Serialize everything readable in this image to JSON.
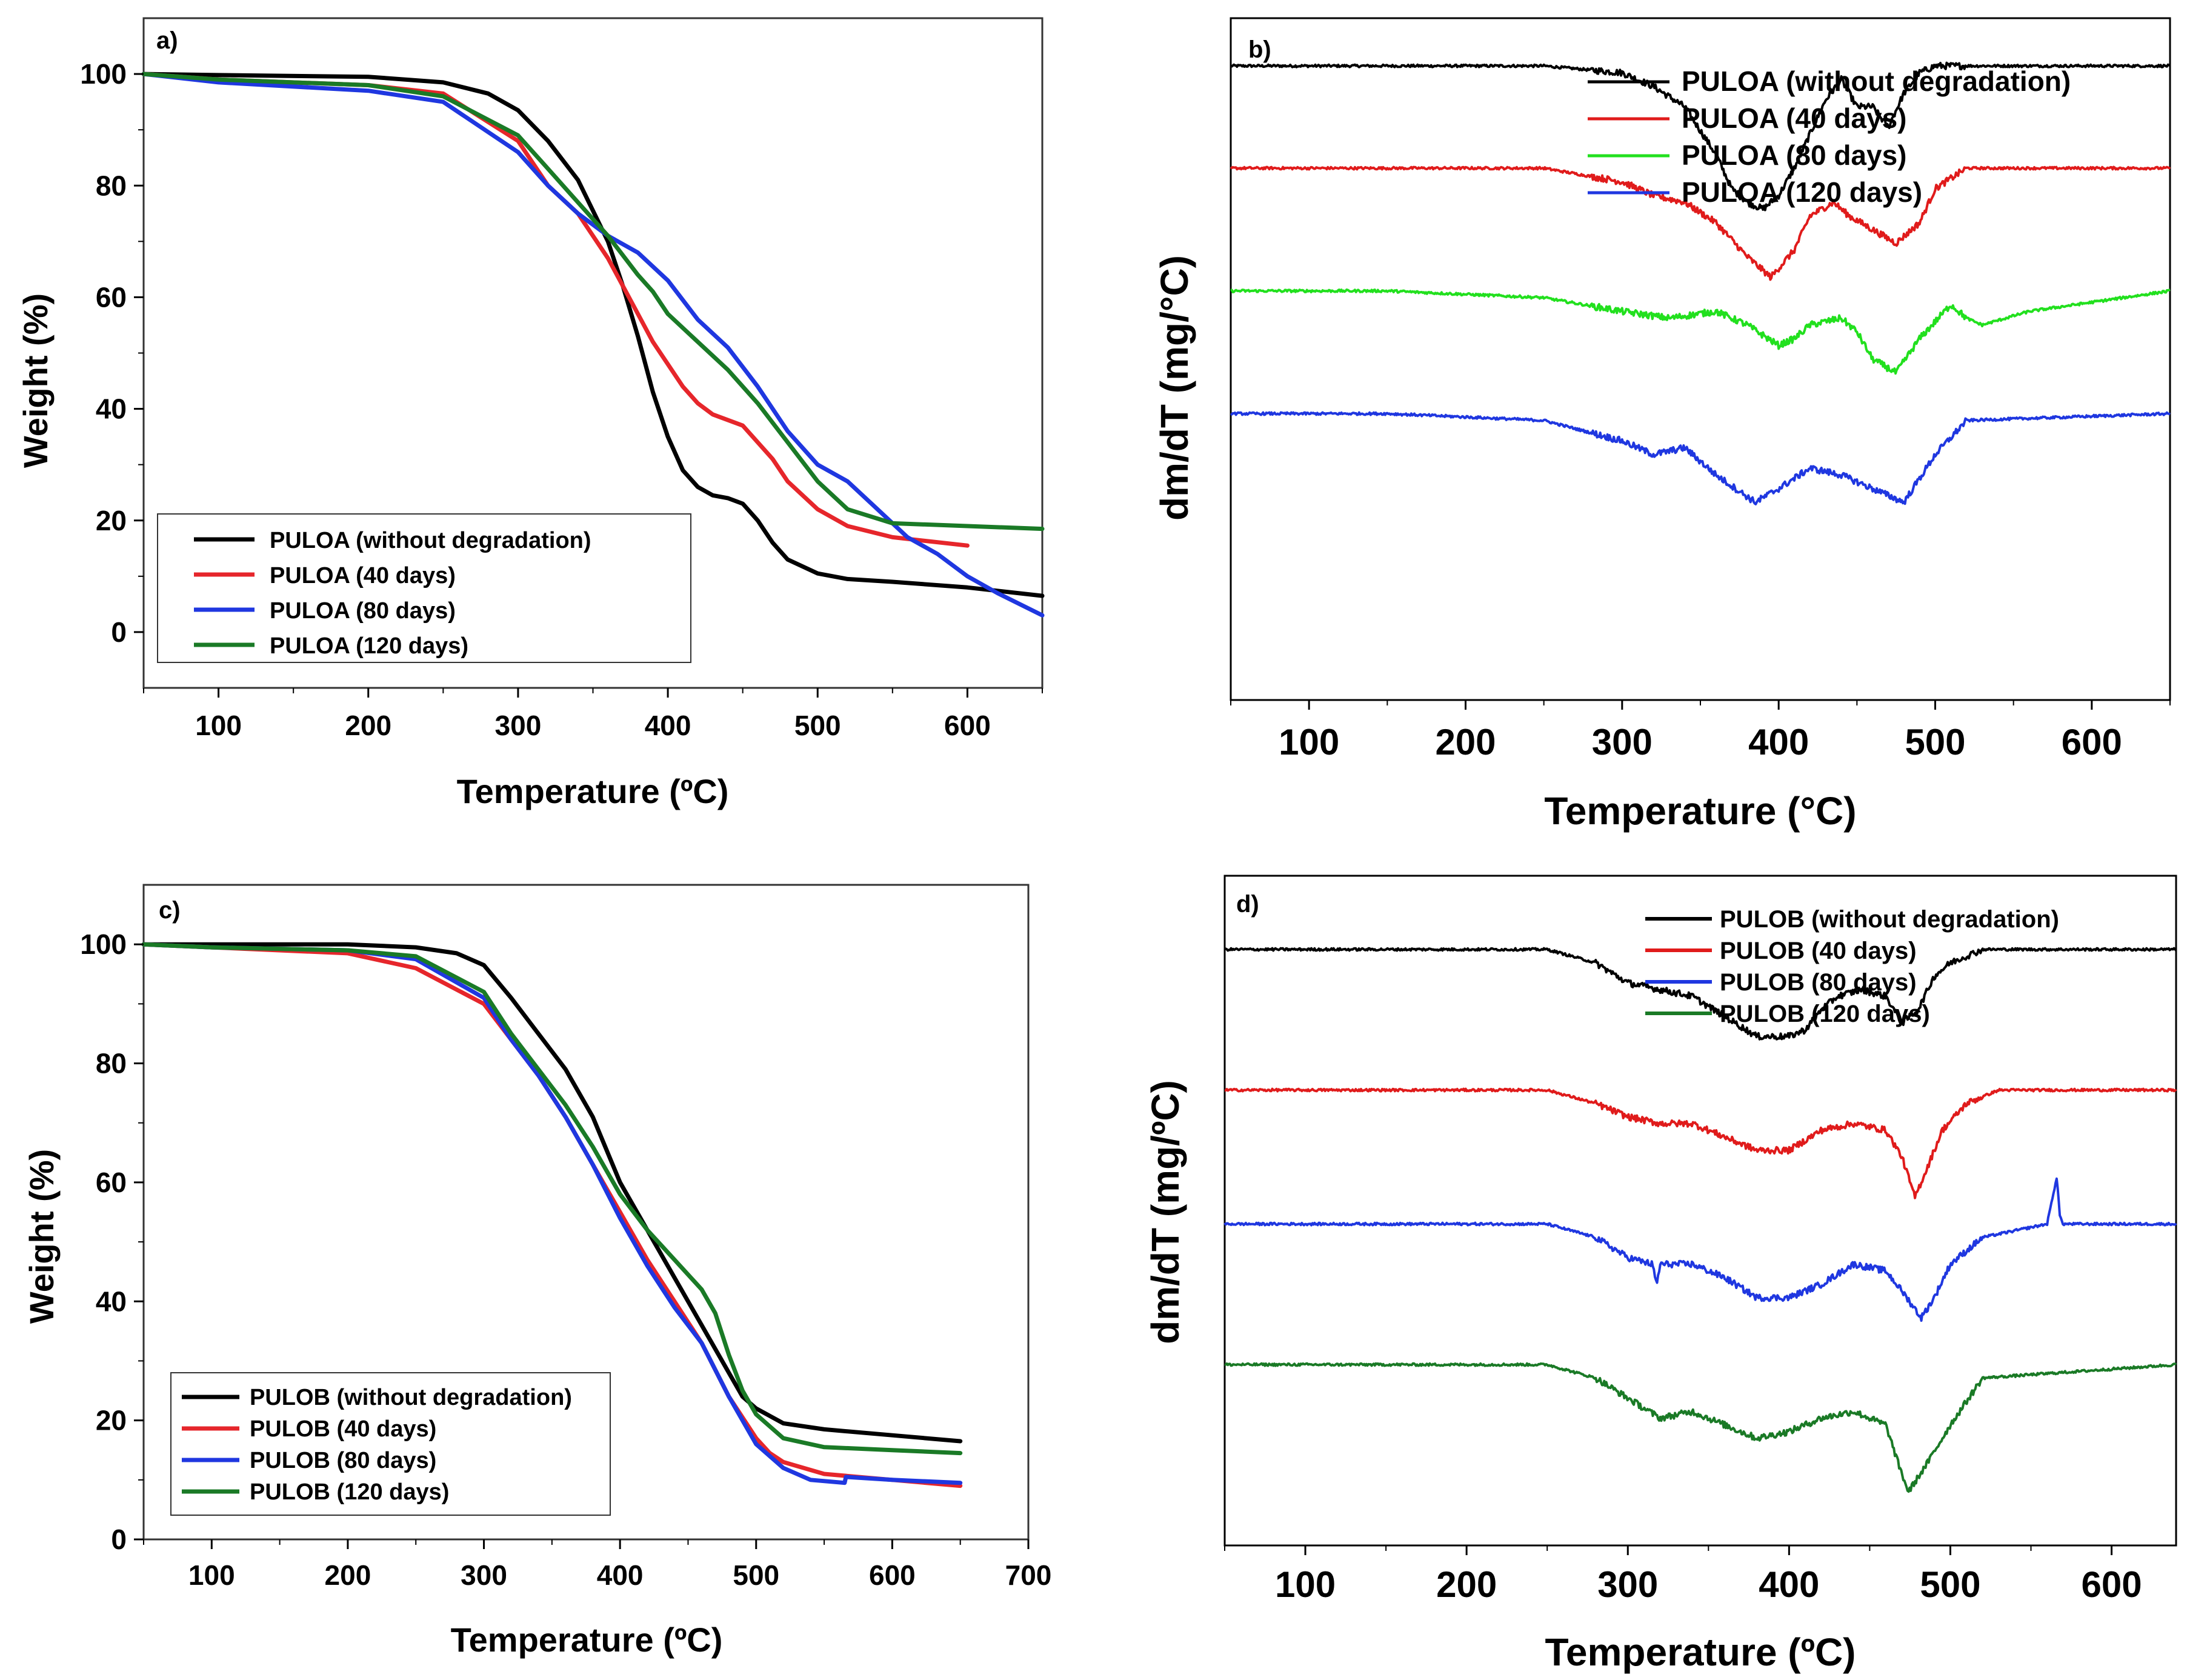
{
  "chart_data": [
    {
      "panel": "a)",
      "type": "line",
      "xlabel": "Temperature (ºC)",
      "ylabel": "Weight (%)",
      "xlim": [
        50,
        650
      ],
      "ylim": [
        -10,
        110
      ],
      "xticks": [
        100,
        200,
        300,
        400,
        500,
        600
      ],
      "yticks": [
        0,
        20,
        40,
        60,
        80,
        100
      ],
      "legend_position": "bottom-left",
      "series": [
        {
          "name": "PULOA (without degradation)",
          "color": "#000000",
          "x": [
            50,
            100,
            200,
            250,
            280,
            300,
            320,
            340,
            360,
            370,
            380,
            390,
            400,
            410,
            420,
            430,
            440,
            450,
            460,
            470,
            480,
            500,
            520,
            550,
            600,
            650
          ],
          "y": [
            100,
            99.8,
            99.5,
            98.5,
            96.5,
            93.5,
            88,
            81,
            70,
            62,
            53,
            43,
            35,
            29,
            26,
            24.5,
            24,
            23,
            20,
            16,
            13,
            10.5,
            9.5,
            9,
            8,
            6.5
          ]
        },
        {
          "name": "PULOA (40 days)",
          "color": "#e6262b",
          "x": [
            50,
            100,
            200,
            250,
            300,
            320,
            340,
            360,
            380,
            390,
            400,
            410,
            420,
            430,
            450,
            460,
            470,
            480,
            500,
            520,
            550,
            600
          ],
          "y": [
            100,
            99,
            98,
            96.5,
            88,
            80,
            75,
            67,
            57,
            52,
            48,
            44,
            41,
            39,
            37,
            34,
            31,
            27,
            22,
            19,
            17,
            15.5
          ]
        },
        {
          "name": "PULOA (80 days)",
          "color": "#1f37e0",
          "x": [
            50,
            100,
            200,
            250,
            300,
            320,
            340,
            360,
            380,
            400,
            420,
            440,
            460,
            480,
            500,
            520,
            540,
            560,
            580,
            600,
            620,
            650
          ],
          "y": [
            100,
            98.5,
            97,
            95,
            86,
            80,
            75,
            71,
            68,
            63,
            56,
            51,
            44,
            36,
            30,
            27,
            22,
            17,
            14,
            10,
            7,
            3
          ]
        },
        {
          "name": "PULOA (120 days)",
          "color": "#1a7a26",
          "x": [
            50,
            100,
            200,
            250,
            300,
            320,
            340,
            360,
            380,
            390,
            400,
            420,
            440,
            460,
            480,
            500,
            520,
            550,
            600,
            650
          ],
          "y": [
            100,
            99,
            98,
            96,
            89,
            83,
            77,
            71,
            64,
            61,
            57,
            52,
            47,
            41,
            34,
            27,
            22,
            19.5,
            19,
            18.5
          ]
        }
      ]
    },
    {
      "panel": "b)",
      "type": "line",
      "xlabel": "Temperature (°C)",
      "ylabel": "dm/dT (mg/°C)",
      "xlim": [
        50,
        650
      ],
      "ylim": [
        0,
        10
      ],
      "xticks": [
        100,
        200,
        300,
        400,
        500,
        600
      ],
      "yticks": [],
      "legend_position": "top-right",
      "series": [
        {
          "name": "PULOA (without degradation)",
          "color": "#000000",
          "noise": 0.06,
          "x": [
            50,
            250,
            300,
            320,
            340,
            360,
            370,
            380,
            390,
            400,
            410,
            420,
            430,
            440,
            450,
            460,
            470,
            480,
            490,
            500,
            520,
            650
          ],
          "y": [
            9.3,
            9.3,
            9.2,
            9.0,
            8.7,
            8.0,
            7.5,
            7.3,
            7.2,
            7.4,
            7.8,
            8.3,
            8.8,
            9.1,
            8.7,
            8.7,
            8.4,
            8.9,
            9.2,
            9.3,
            9.3,
            9.3
          ]
        },
        {
          "name": "PULOA (40 days)",
          "color": "#e01b1b",
          "noise": 0.06,
          "x": [
            50,
            250,
            300,
            320,
            340,
            360,
            380,
            395,
            410,
            420,
            435,
            445,
            460,
            475,
            490,
            500,
            520,
            650
          ],
          "y": [
            7.8,
            7.8,
            7.6,
            7.4,
            7.3,
            7.0,
            6.5,
            6.2,
            6.6,
            7.1,
            7.3,
            7.1,
            6.9,
            6.7,
            7.0,
            7.5,
            7.8,
            7.8
          ]
        },
        {
          "name": "PULOA (80 days)",
          "color": "#22e01e",
          "noise": 0.06,
          "x": [
            50,
            150,
            250,
            300,
            330,
            360,
            380,
            400,
            410,
            420,
            440,
            450,
            460,
            475,
            490,
            510,
            520,
            530,
            560,
            650
          ],
          "y": [
            6.0,
            6.0,
            5.9,
            5.7,
            5.6,
            5.7,
            5.5,
            5.2,
            5.3,
            5.5,
            5.6,
            5.4,
            5.0,
            4.8,
            5.3,
            5.8,
            5.6,
            5.5,
            5.7,
            6.0
          ]
        },
        {
          "name": "PULOA (120 days)",
          "color": "#1f37e0",
          "noise": 0.06,
          "x": [
            50,
            150,
            250,
            300,
            320,
            340,
            360,
            385,
            400,
            420,
            440,
            460,
            480,
            500,
            520,
            650
          ],
          "y": [
            4.2,
            4.2,
            4.1,
            3.8,
            3.6,
            3.7,
            3.3,
            2.9,
            3.1,
            3.4,
            3.3,
            3.1,
            2.9,
            3.6,
            4.1,
            4.2
          ]
        }
      ]
    },
    {
      "panel": "c)",
      "type": "line",
      "xlabel": "Temperature (ºC)",
      "ylabel": "Weight (%)",
      "xlim": [
        50,
        700
      ],
      "ylim": [
        0,
        110
      ],
      "xticks": [
        100,
        200,
        300,
        400,
        500,
        600,
        700
      ],
      "yticks": [
        0,
        20,
        40,
        60,
        80,
        100
      ],
      "legend_position": "bottom-left",
      "series": [
        {
          "name": "PULOB (without degradation)",
          "color": "#000000",
          "x": [
            50,
            100,
            200,
            250,
            280,
            300,
            320,
            340,
            360,
            380,
            400,
            420,
            440,
            460,
            480,
            490,
            500,
            520,
            550,
            600,
            650
          ],
          "y": [
            100,
            100,
            100,
            99.5,
            98.5,
            96.5,
            91,
            85,
            79,
            71,
            60,
            52,
            44,
            36,
            28,
            24,
            22,
            19.5,
            18.5,
            17.5,
            16.5
          ]
        },
        {
          "name": "PULOB (40 days)",
          "color": "#e6262b",
          "x": [
            50,
            100,
            200,
            250,
            300,
            320,
            340,
            360,
            380,
            400,
            420,
            440,
            460,
            480,
            500,
            510,
            520,
            550,
            600,
            650
          ],
          "y": [
            100,
            99.5,
            98.5,
            96,
            90,
            84,
            78,
            71,
            63,
            55,
            47,
            40,
            33,
            24,
            17,
            14.5,
            13,
            11,
            10,
            9
          ]
        },
        {
          "name": "PULOB (80 days)",
          "color": "#1f37e0",
          "x": [
            50,
            100,
            200,
            250,
            300,
            320,
            340,
            360,
            380,
            400,
            420,
            440,
            460,
            480,
            500,
            520,
            540,
            565,
            566,
            600,
            650
          ],
          "y": [
            100,
            99.5,
            99,
            97.5,
            91,
            84,
            78,
            71,
            63,
            54,
            46,
            39,
            33,
            24,
            16,
            12,
            10,
            9.5,
            10.5,
            10,
            9.5
          ]
        },
        {
          "name": "PULOB (120 days)",
          "color": "#1a7a26",
          "x": [
            50,
            100,
            200,
            250,
            300,
            320,
            340,
            360,
            380,
            400,
            420,
            440,
            460,
            470,
            480,
            490,
            500,
            520,
            550,
            600,
            650
          ],
          "y": [
            100,
            99.5,
            99,
            98,
            92,
            85,
            79,
            73,
            66,
            58,
            52,
            47,
            42,
            38,
            31,
            25,
            21,
            17,
            15.5,
            15,
            14.5
          ]
        }
      ]
    },
    {
      "panel": "d)",
      "type": "line",
      "xlabel": "Temperature (ºC)",
      "ylabel": "dm/dT (mg/ºC)",
      "xlim": [
        50,
        640
      ],
      "ylim": [
        0,
        10
      ],
      "xticks": [
        100,
        200,
        300,
        400,
        500,
        600
      ],
      "yticks": [],
      "legend_position": "top-right",
      "series": [
        {
          "name": "PULOB (without degradation)",
          "color": "#000000",
          "noise": 0.06,
          "x": [
            50,
            250,
            280,
            300,
            320,
            340,
            360,
            380,
            400,
            410,
            420,
            430,
            445,
            460,
            470,
            480,
            490,
            500,
            520,
            640
          ],
          "y": [
            8.9,
            8.9,
            8.7,
            8.4,
            8.3,
            8.2,
            7.9,
            7.6,
            7.6,
            7.7,
            8.0,
            8.2,
            8.3,
            8.2,
            7.8,
            8.0,
            8.5,
            8.7,
            8.9,
            8.9
          ]
        },
        {
          "name": "PULOB (40 days)",
          "color": "#e01b1b",
          "noise": 0.06,
          "x": [
            50,
            250,
            280,
            300,
            320,
            340,
            360,
            380,
            400,
            420,
            440,
            460,
            470,
            478,
            485,
            495,
            510,
            530,
            640
          ],
          "y": [
            6.8,
            6.8,
            6.6,
            6.4,
            6.3,
            6.3,
            6.1,
            5.9,
            5.9,
            6.2,
            6.3,
            6.2,
            5.8,
            5.2,
            5.6,
            6.2,
            6.6,
            6.8,
            6.8
          ]
        },
        {
          "name": "PULOB (80 days)",
          "color": "#1f37e0",
          "noise": 0.06,
          "x": [
            50,
            250,
            280,
            300,
            315,
            318,
            320,
            340,
            360,
            380,
            400,
            420,
            440,
            460,
            470,
            482,
            490,
            500,
            520,
            560,
            566,
            568,
            570,
            640
          ],
          "y": [
            4.8,
            4.8,
            4.6,
            4.3,
            4.2,
            3.9,
            4.2,
            4.2,
            4.0,
            3.7,
            3.7,
            3.9,
            4.2,
            4.1,
            3.8,
            3.4,
            3.7,
            4.2,
            4.6,
            4.8,
            5.5,
            4.9,
            4.8,
            4.8
          ]
        },
        {
          "name": "PULOB (120 days)",
          "color": "#1a7a26",
          "noise": 0.06,
          "x": [
            50,
            250,
            280,
            300,
            320,
            340,
            360,
            380,
            400,
            420,
            440,
            460,
            468,
            474,
            485,
            500,
            520,
            640
          ],
          "y": [
            2.7,
            2.7,
            2.5,
            2.2,
            1.9,
            2.0,
            1.8,
            1.6,
            1.7,
            1.9,
            2.0,
            1.8,
            1.2,
            0.8,
            1.2,
            1.8,
            2.5,
            2.7
          ]
        }
      ]
    }
  ]
}
